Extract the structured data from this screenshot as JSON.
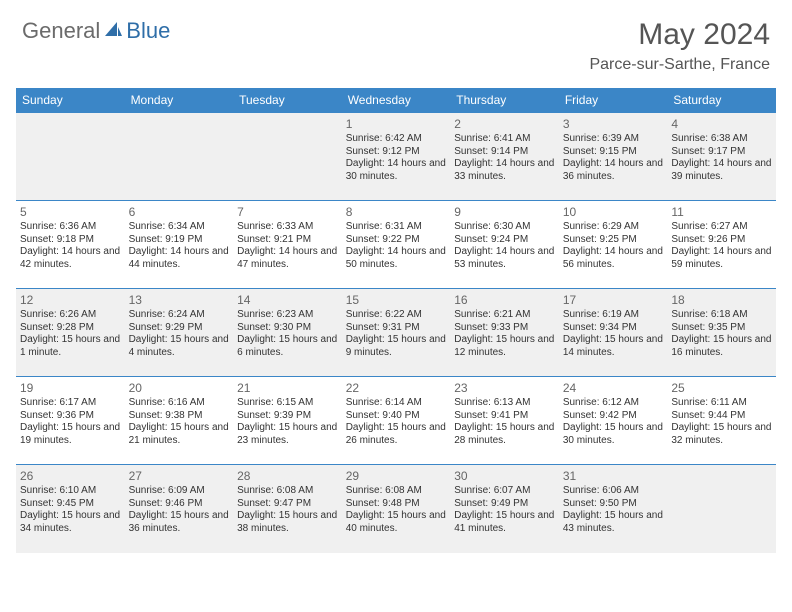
{
  "logo": {
    "gen": "General",
    "blue": "Blue"
  },
  "title": "May 2024",
  "location": "Parce-sur-Sarthe, France",
  "colors": {
    "header_bg": "#3b86c7",
    "header_text": "#ffffff",
    "alt_row_bg": "#f0f0f0",
    "border": "#3b86c7",
    "title_color": "#555555",
    "logo_gray": "#6b6b6b",
    "logo_blue": "#2f6ea8"
  },
  "dayNames": [
    "Sunday",
    "Monday",
    "Tuesday",
    "Wednesday",
    "Thursday",
    "Friday",
    "Saturday"
  ],
  "weeks": [
    [
      null,
      null,
      null,
      {
        "n": "1",
        "sr": "6:42 AM",
        "ss": "9:12 PM",
        "dl": "14 hours and 30 minutes."
      },
      {
        "n": "2",
        "sr": "6:41 AM",
        "ss": "9:14 PM",
        "dl": "14 hours and 33 minutes."
      },
      {
        "n": "3",
        "sr": "6:39 AM",
        "ss": "9:15 PM",
        "dl": "14 hours and 36 minutes."
      },
      {
        "n": "4",
        "sr": "6:38 AM",
        "ss": "9:17 PM",
        "dl": "14 hours and 39 minutes."
      }
    ],
    [
      {
        "n": "5",
        "sr": "6:36 AM",
        "ss": "9:18 PM",
        "dl": "14 hours and 42 minutes."
      },
      {
        "n": "6",
        "sr": "6:34 AM",
        "ss": "9:19 PM",
        "dl": "14 hours and 44 minutes."
      },
      {
        "n": "7",
        "sr": "6:33 AM",
        "ss": "9:21 PM",
        "dl": "14 hours and 47 minutes."
      },
      {
        "n": "8",
        "sr": "6:31 AM",
        "ss": "9:22 PM",
        "dl": "14 hours and 50 minutes."
      },
      {
        "n": "9",
        "sr": "6:30 AM",
        "ss": "9:24 PM",
        "dl": "14 hours and 53 minutes."
      },
      {
        "n": "10",
        "sr": "6:29 AM",
        "ss": "9:25 PM",
        "dl": "14 hours and 56 minutes."
      },
      {
        "n": "11",
        "sr": "6:27 AM",
        "ss": "9:26 PM",
        "dl": "14 hours and 59 minutes."
      }
    ],
    [
      {
        "n": "12",
        "sr": "6:26 AM",
        "ss": "9:28 PM",
        "dl": "15 hours and 1 minute."
      },
      {
        "n": "13",
        "sr": "6:24 AM",
        "ss": "9:29 PM",
        "dl": "15 hours and 4 minutes."
      },
      {
        "n": "14",
        "sr": "6:23 AM",
        "ss": "9:30 PM",
        "dl": "15 hours and 6 minutes."
      },
      {
        "n": "15",
        "sr": "6:22 AM",
        "ss": "9:31 PM",
        "dl": "15 hours and 9 minutes."
      },
      {
        "n": "16",
        "sr": "6:21 AM",
        "ss": "9:33 PM",
        "dl": "15 hours and 12 minutes."
      },
      {
        "n": "17",
        "sr": "6:19 AM",
        "ss": "9:34 PM",
        "dl": "15 hours and 14 minutes."
      },
      {
        "n": "18",
        "sr": "6:18 AM",
        "ss": "9:35 PM",
        "dl": "15 hours and 16 minutes."
      }
    ],
    [
      {
        "n": "19",
        "sr": "6:17 AM",
        "ss": "9:36 PM",
        "dl": "15 hours and 19 minutes."
      },
      {
        "n": "20",
        "sr": "6:16 AM",
        "ss": "9:38 PM",
        "dl": "15 hours and 21 minutes."
      },
      {
        "n": "21",
        "sr": "6:15 AM",
        "ss": "9:39 PM",
        "dl": "15 hours and 23 minutes."
      },
      {
        "n": "22",
        "sr": "6:14 AM",
        "ss": "9:40 PM",
        "dl": "15 hours and 26 minutes."
      },
      {
        "n": "23",
        "sr": "6:13 AM",
        "ss": "9:41 PM",
        "dl": "15 hours and 28 minutes."
      },
      {
        "n": "24",
        "sr": "6:12 AM",
        "ss": "9:42 PM",
        "dl": "15 hours and 30 minutes."
      },
      {
        "n": "25",
        "sr": "6:11 AM",
        "ss": "9:44 PM",
        "dl": "15 hours and 32 minutes."
      }
    ],
    [
      {
        "n": "26",
        "sr": "6:10 AM",
        "ss": "9:45 PM",
        "dl": "15 hours and 34 minutes."
      },
      {
        "n": "27",
        "sr": "6:09 AM",
        "ss": "9:46 PM",
        "dl": "15 hours and 36 minutes."
      },
      {
        "n": "28",
        "sr": "6:08 AM",
        "ss": "9:47 PM",
        "dl": "15 hours and 38 minutes."
      },
      {
        "n": "29",
        "sr": "6:08 AM",
        "ss": "9:48 PM",
        "dl": "15 hours and 40 minutes."
      },
      {
        "n": "30",
        "sr": "6:07 AM",
        "ss": "9:49 PM",
        "dl": "15 hours and 41 minutes."
      },
      {
        "n": "31",
        "sr": "6:06 AM",
        "ss": "9:50 PM",
        "dl": "15 hours and 43 minutes."
      },
      null
    ]
  ],
  "labels": {
    "sunrise": "Sunrise:",
    "sunset": "Sunset:",
    "daylight": "Daylight:"
  }
}
